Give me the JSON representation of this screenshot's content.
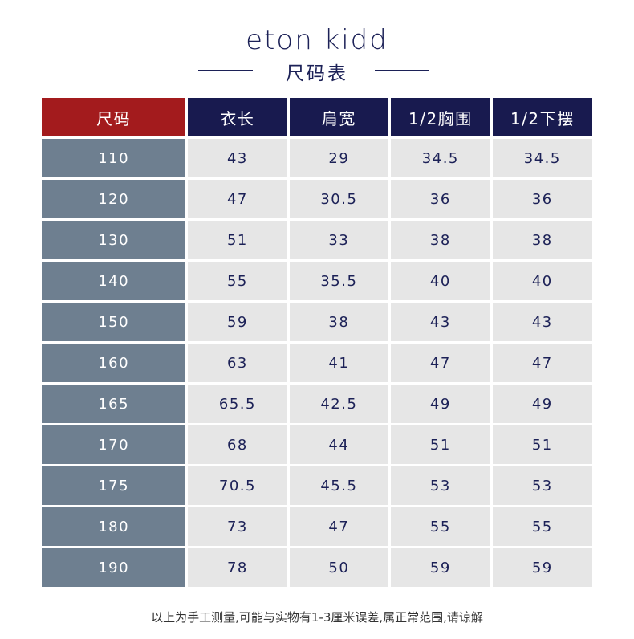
{
  "brand": "eton kidd",
  "subtitle": "尺码表",
  "colors": {
    "header_first": "#a31b1d",
    "header": "#181a4f",
    "size_column": "#6e7f90",
    "cell": "#e6e6e6",
    "text_dark": "#1c2157"
  },
  "table": {
    "headers": [
      "尺码",
      "衣长",
      "肩宽",
      "1/2胸围",
      "1/2下摆"
    ],
    "rows": [
      [
        "110",
        "43",
        "29",
        "34.5",
        "34.5"
      ],
      [
        "120",
        "47",
        "30.5",
        "36",
        "36"
      ],
      [
        "130",
        "51",
        "33",
        "38",
        "38"
      ],
      [
        "140",
        "55",
        "35.5",
        "40",
        "40"
      ],
      [
        "150",
        "59",
        "38",
        "43",
        "43"
      ],
      [
        "160",
        "63",
        "41",
        "47",
        "47"
      ],
      [
        "165",
        "65.5",
        "42.5",
        "49",
        "49"
      ],
      [
        "170",
        "68",
        "44",
        "51",
        "51"
      ],
      [
        "175",
        "70.5",
        "45.5",
        "53",
        "53"
      ],
      [
        "180",
        "73",
        "47",
        "55",
        "55"
      ],
      [
        "190",
        "78",
        "50",
        "59",
        "59"
      ]
    ]
  },
  "footer": "以上为手工测量,可能与实物有1-3厘米误差,属正常范围,请谅解"
}
